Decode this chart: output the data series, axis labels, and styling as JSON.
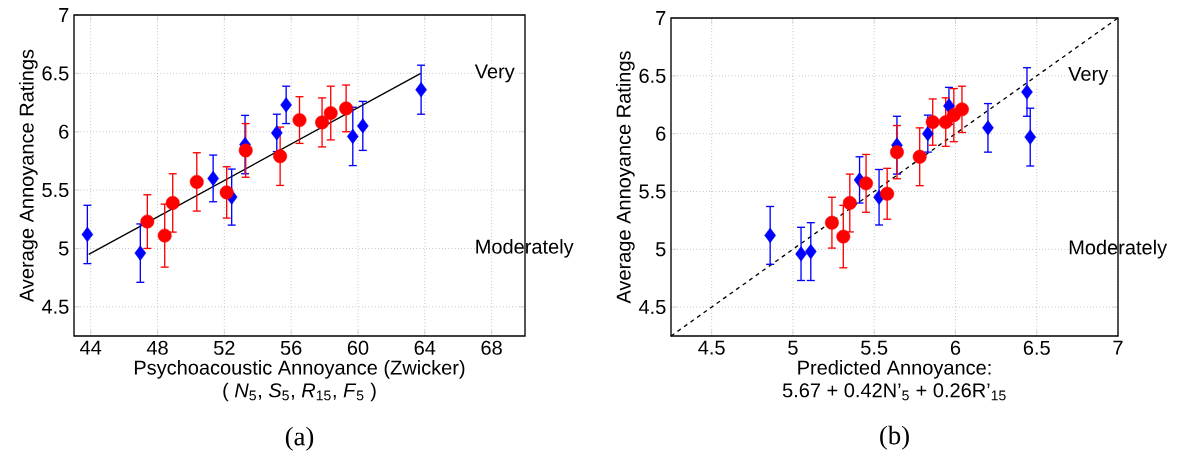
{
  "chart_data": [
    {
      "type": "scatter",
      "title": "(a)",
      "xlabel": "Psychoacoustic Annoyance (Zwicker)",
      "ylabel": "Average Annoyance Ratings",
      "xlim": [
        43,
        70
      ],
      "xticks": [
        44,
        48,
        52,
        56,
        60,
        64,
        68
      ],
      "ylim": [
        4.25,
        7
      ],
      "yticks": [
        4.5,
        5,
        5.5,
        6,
        6.5,
        7
      ],
      "grid": true,
      "annotations": [
        "( *N*$_{5}$, *S*$_{5}$, *R*$_{15}$, *F*$_{5}$ )",
        "Very",
        "Moderately"
      ],
      "series": [
        {
          "type": "line",
          "color": "#000000",
          "line_style": "solid",
          "x": [
            43.88,
            63.76
          ],
          "values": [
            4.95,
            6.5
          ]
        },
        {
          "color": "#0000ff",
          "marker": "diamond",
          "x": [
            43.8,
            46.97,
            51.33,
            52.44,
            53.24,
            55.14,
            55.7,
            59.69,
            60.29,
            63.78
          ],
          "values": [
            5.12,
            4.96,
            5.6,
            5.44,
            5.89,
            5.99,
            6.23,
            5.96,
            6.05,
            6.36
          ],
          "errors": [
            0.25,
            0.25,
            0.2,
            0.24,
            0.25,
            0.16,
            0.16,
            0.25,
            0.21,
            0.21
          ]
        },
        {
          "color": "#ff0000",
          "marker": "circle",
          "x": [
            47.39,
            48.43,
            48.91,
            50.35,
            52.14,
            53.28,
            55.34,
            56.5,
            57.85,
            58.37,
            59.29
          ],
          "values": [
            5.23,
            5.11,
            5.39,
            5.57,
            5.48,
            5.84,
            5.79,
            6.1,
            6.08,
            6.16,
            6.2
          ],
          "errors": [
            0.23,
            0.27,
            0.25,
            0.25,
            0.22,
            0.23,
            0.25,
            0.2,
            0.21,
            0.23,
            0.2
          ]
        }
      ]
    },
    {
      "type": "scatter",
      "title": "(b)",
      "xlabel": "Predicted Annoyance:",
      "ylabel": "Average Annoyance Ratings",
      "xlim": [
        4.25,
        7
      ],
      "xticks": [
        4.5,
        5,
        5.5,
        6,
        6.5,
        7
      ],
      "ylim": [
        4.25,
        7
      ],
      "yticks": [
        4.5,
        5,
        5.5,
        6,
        6.5,
        7
      ],
      "grid": true,
      "annotations": [
        "5.67 + 0.42N’$_{5}$ + 0.26R’$_{15}$",
        "Very",
        "Moderately"
      ],
      "series": [
        {
          "type": "line",
          "color": "#000000",
          "line_style": "dashed",
          "x": [
            4.25,
            7
          ],
          "values": [
            4.25,
            7
          ]
        },
        {
          "color": "#0000ff",
          "marker": "diamond",
          "x": [
            4.86,
            5.05,
            5.11,
            5.41,
            5.53,
            5.64,
            5.83,
            5.96,
            6.2,
            6.44,
            6.46
          ],
          "values": [
            5.12,
            4.96,
            4.98,
            5.6,
            5.45,
            5.9,
            6.0,
            6.24,
            6.05,
            6.36,
            5.97
          ],
          "errors": [
            0.25,
            0.23,
            0.25,
            0.2,
            0.24,
            0.25,
            0.16,
            0.16,
            0.21,
            0.21,
            0.25
          ]
        },
        {
          "color": "#ff0000",
          "marker": "circle",
          "x": [
            5.24,
            5.31,
            5.35,
            5.45,
            5.58,
            5.64,
            5.78,
            5.86,
            5.94,
            5.99,
            6.04
          ],
          "values": [
            5.23,
            5.11,
            5.4,
            5.57,
            5.48,
            5.84,
            5.8,
            6.1,
            6.1,
            6.16,
            6.21
          ],
          "errors": [
            0.22,
            0.27,
            0.25,
            0.25,
            0.22,
            0.23,
            0.25,
            0.2,
            0.21,
            0.23,
            0.2
          ]
        }
      ]
    }
  ]
}
